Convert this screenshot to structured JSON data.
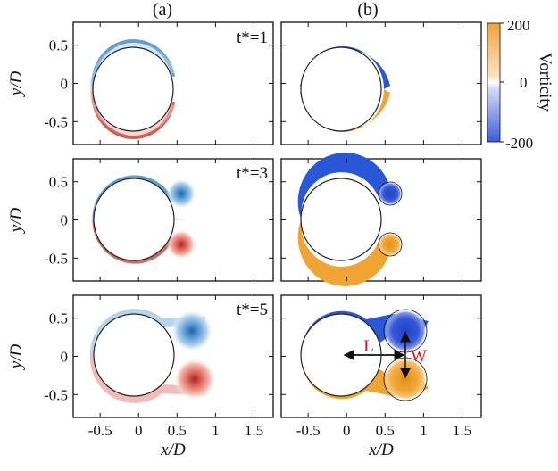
{
  "figure": {
    "col_labels": [
      "(a)",
      "(b)"
    ],
    "ylabel": "y/D",
    "xlabel": "x/D",
    "time_labels": [
      "t*=1",
      "t*=3",
      "t*=5"
    ],
    "x_ticks": [
      "-0.5",
      "0",
      "0.5",
      "1",
      "1.5"
    ],
    "y_ticks": [
      "0.5",
      "0",
      "-0.5"
    ],
    "annotations": {
      "length": "L",
      "width": "W"
    },
    "colorbar": {
      "label": "Vorticity",
      "ticks": [
        "200",
        "0",
        "-200"
      ],
      "colors": {
        "positive": "#f2a33a",
        "zero": "#ffffff",
        "negative": "#3f5be0"
      }
    },
    "colors": {
      "a_positive": "#c0392b",
      "a_negative": "#2f7fc0",
      "b_positive": "#f0a431",
      "b_negative": "#2857d8",
      "annotation": "#e01010"
    }
  },
  "chart_data": {
    "type": "heatmap",
    "quantity": "Vorticity",
    "xlabel": "x/D",
    "ylabel": "y/D",
    "xlim": [
      -0.85,
      1.75
    ],
    "ylim": [
      -0.8,
      0.8
    ],
    "colorbar_range": [
      -200,
      200
    ],
    "cylinder": {
      "center": [
        0,
        0
      ],
      "radius": 0.5
    },
    "columns": [
      "(a)",
      "(b)"
    ],
    "snapshots": [
      {
        "time": "t*=1",
        "vortex_centers": []
      },
      {
        "time": "t*=3",
        "vortex_centers": [
          {
            "x": 0.6,
            "y": 0.33,
            "sign": "negative"
          },
          {
            "x": 0.6,
            "y": -0.33,
            "sign": "positive"
          }
        ]
      },
      {
        "time": "t*=5",
        "vortex_centers": [
          {
            "x": 0.78,
            "y": 0.3,
            "sign": "negative"
          },
          {
            "x": 0.78,
            "y": -0.3,
            "sign": "positive"
          }
        ]
      }
    ]
  }
}
